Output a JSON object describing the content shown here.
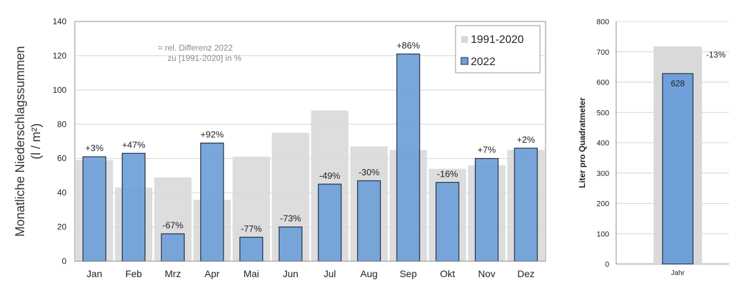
{
  "chart_data": [
    {
      "type": "bar",
      "ylabel_line1": "Monatliche Niederschlagssummen",
      "ylabel_line2": "(l / m²)",
      "ylim": [
        0,
        140
      ],
      "yticks": [
        0,
        20,
        40,
        60,
        80,
        100,
        120,
        140
      ],
      "grid": true,
      "legend_position": "top-right",
      "note_line1": "= rel. Differenz 2022",
      "note_line2": "zu [1991-2020] in %",
      "categories": [
        "Jan",
        "Feb",
        "Mrz",
        "Apr",
        "Mai",
        "Jun",
        "Jul",
        "Aug",
        "Sep",
        "Okt",
        "Nov",
        "Dez"
      ],
      "series": [
        {
          "name": "1991-2020",
          "color": "#d9d9d9",
          "values": [
            59,
            43,
            49,
            36,
            61,
            75,
            88,
            67,
            65,
            54,
            56,
            65
          ]
        },
        {
          "name": "2022",
          "color": "#6f9fd8",
          "values": [
            61,
            63,
            16,
            69,
            14,
            20,
            45,
            47,
            121,
            46,
            60,
            66
          ]
        }
      ],
      "data_labels": [
        "+3%",
        "+47%",
        "-67%",
        "+92%",
        "-77%",
        "-73%",
        "-49%",
        "-30%",
        "+86%",
        "-16%",
        "+7%",
        "+2%"
      ]
    },
    {
      "type": "bar",
      "ylabel": "Liter pro Quadratmeter",
      "ylim": [
        0,
        800
      ],
      "yticks": [
        0,
        100,
        200,
        300,
        400,
        500,
        600,
        700,
        800
      ],
      "grid": true,
      "categories": [
        "Jahr"
      ],
      "series": [
        {
          "name": "1991-2020",
          "color": "#d9d9d9",
          "values": [
            718
          ]
        },
        {
          "name": "2022",
          "color": "#6f9fd8",
          "values": [
            628
          ]
        }
      ],
      "value_label": "628",
      "diff_label": "-13%"
    }
  ]
}
